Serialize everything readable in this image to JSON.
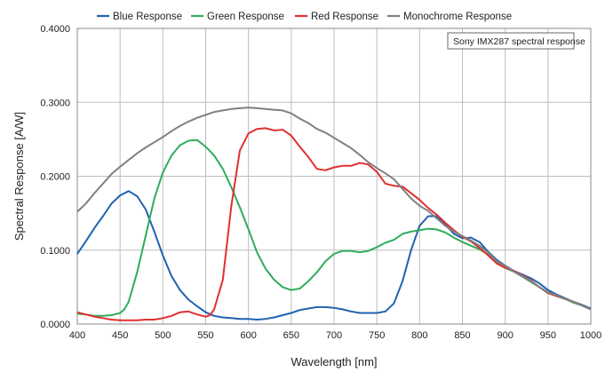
{
  "chart_data": {
    "type": "line",
    "title": "",
    "xlabel": "Wavelength [nm]",
    "ylabel": "Spectral Response [A/W]",
    "xlim": [
      400,
      1000
    ],
    "ylim": [
      0,
      0.4
    ],
    "x_ticks": [
      400,
      450,
      500,
      550,
      600,
      650,
      700,
      750,
      800,
      850,
      900,
      950,
      1000
    ],
    "y_ticks": [
      0,
      0.1,
      0.2,
      0.3,
      0.4
    ],
    "y_tick_labels": [
      "0.0000",
      "0.1000",
      "0.2000",
      "0.3000",
      "0.4000"
    ],
    "grid": true,
    "legend_position": "top",
    "annotation": "Sony IMX287 spectral response",
    "series": [
      {
        "name": "Blue Response",
        "color": "#1f63b0",
        "points": [
          [
            400,
            0.095
          ],
          [
            410,
            0.112
          ],
          [
            420,
            0.13
          ],
          [
            430,
            0.146
          ],
          [
            440,
            0.163
          ],
          [
            450,
            0.174
          ],
          [
            460,
            0.18
          ],
          [
            470,
            0.173
          ],
          [
            480,
            0.155
          ],
          [
            490,
            0.125
          ],
          [
            500,
            0.093
          ],
          [
            510,
            0.065
          ],
          [
            520,
            0.046
          ],
          [
            530,
            0.033
          ],
          [
            540,
            0.024
          ],
          [
            550,
            0.016
          ],
          [
            560,
            0.011
          ],
          [
            570,
            0.009
          ],
          [
            580,
            0.008
          ],
          [
            590,
            0.007
          ],
          [
            600,
            0.007
          ],
          [
            610,
            0.006
          ],
          [
            620,
            0.007
          ],
          [
            630,
            0.009
          ],
          [
            640,
            0.012
          ],
          [
            650,
            0.015
          ],
          [
            660,
            0.019
          ],
          [
            670,
            0.021
          ],
          [
            680,
            0.023
          ],
          [
            690,
            0.023
          ],
          [
            700,
            0.022
          ],
          [
            710,
            0.02
          ],
          [
            720,
            0.017
          ],
          [
            730,
            0.015
          ],
          [
            740,
            0.015
          ],
          [
            750,
            0.015
          ],
          [
            760,
            0.017
          ],
          [
            770,
            0.028
          ],
          [
            780,
            0.058
          ],
          [
            790,
            0.1
          ],
          [
            800,
            0.133
          ],
          [
            810,
            0.146
          ],
          [
            820,
            0.146
          ],
          [
            830,
            0.135
          ],
          [
            840,
            0.122
          ],
          [
            850,
            0.116
          ],
          [
            860,
            0.117
          ],
          [
            870,
            0.111
          ],
          [
            880,
            0.098
          ],
          [
            890,
            0.087
          ],
          [
            900,
            0.079
          ],
          [
            910,
            0.072
          ],
          [
            920,
            0.067
          ],
          [
            930,
            0.062
          ],
          [
            940,
            0.055
          ],
          [
            950,
            0.046
          ],
          [
            960,
            0.04
          ],
          [
            970,
            0.035
          ],
          [
            980,
            0.03
          ],
          [
            990,
            0.026
          ],
          [
            1000,
            0.021
          ]
        ]
      },
      {
        "name": "Green Response",
        "color": "#2eac5c",
        "points": [
          [
            400,
            0.014
          ],
          [
            410,
            0.013
          ],
          [
            420,
            0.011
          ],
          [
            430,
            0.011
          ],
          [
            440,
            0.012
          ],
          [
            450,
            0.015
          ],
          [
            455,
            0.02
          ],
          [
            460,
            0.03
          ],
          [
            470,
            0.07
          ],
          [
            480,
            0.12
          ],
          [
            490,
            0.17
          ],
          [
            500,
            0.205
          ],
          [
            510,
            0.228
          ],
          [
            520,
            0.242
          ],
          [
            530,
            0.248
          ],
          [
            540,
            0.249
          ],
          [
            550,
            0.24
          ],
          [
            560,
            0.228
          ],
          [
            570,
            0.21
          ],
          [
            580,
            0.185
          ],
          [
            590,
            0.158
          ],
          [
            600,
            0.128
          ],
          [
            610,
            0.097
          ],
          [
            620,
            0.075
          ],
          [
            630,
            0.06
          ],
          [
            640,
            0.05
          ],
          [
            650,
            0.046
          ],
          [
            660,
            0.048
          ],
          [
            670,
            0.058
          ],
          [
            680,
            0.07
          ],
          [
            690,
            0.085
          ],
          [
            700,
            0.095
          ],
          [
            710,
            0.099
          ],
          [
            720,
            0.099
          ],
          [
            730,
            0.097
          ],
          [
            740,
            0.099
          ],
          [
            750,
            0.104
          ],
          [
            760,
            0.11
          ],
          [
            770,
            0.114
          ],
          [
            780,
            0.122
          ],
          [
            790,
            0.125
          ],
          [
            800,
            0.127
          ],
          [
            810,
            0.129
          ],
          [
            820,
            0.128
          ],
          [
            830,
            0.124
          ],
          [
            840,
            0.117
          ],
          [
            850,
            0.111
          ],
          [
            860,
            0.106
          ],
          [
            870,
            0.101
          ],
          [
            880,
            0.094
          ],
          [
            890,
            0.083
          ],
          [
            900,
            0.076
          ],
          [
            910,
            0.071
          ],
          [
            920,
            0.064
          ],
          [
            930,
            0.057
          ],
          [
            940,
            0.05
          ],
          [
            950,
            0.042
          ],
          [
            960,
            0.038
          ],
          [
            970,
            0.034
          ],
          [
            980,
            0.029
          ],
          [
            990,
            0.025
          ],
          [
            1000,
            0.02
          ]
        ]
      },
      {
        "name": "Red Response",
        "color": "#e03030",
        "points": [
          [
            400,
            0.016
          ],
          [
            410,
            0.013
          ],
          [
            420,
            0.01
          ],
          [
            430,
            0.008
          ],
          [
            440,
            0.006
          ],
          [
            450,
            0.005
          ],
          [
            460,
            0.005
          ],
          [
            470,
            0.005
          ],
          [
            480,
            0.006
          ],
          [
            490,
            0.006
          ],
          [
            500,
            0.008
          ],
          [
            510,
            0.011
          ],
          [
            520,
            0.016
          ],
          [
            530,
            0.017
          ],
          [
            540,
            0.013
          ],
          [
            550,
            0.01
          ],
          [
            555,
            0.012
          ],
          [
            560,
            0.02
          ],
          [
            570,
            0.06
          ],
          [
            580,
            0.16
          ],
          [
            590,
            0.235
          ],
          [
            600,
            0.258
          ],
          [
            610,
            0.264
          ],
          [
            620,
            0.265
          ],
          [
            630,
            0.262
          ],
          [
            640,
            0.263
          ],
          [
            650,
            0.255
          ],
          [
            660,
            0.24
          ],
          [
            670,
            0.226
          ],
          [
            680,
            0.21
          ],
          [
            690,
            0.208
          ],
          [
            700,
            0.212
          ],
          [
            710,
            0.214
          ],
          [
            720,
            0.214
          ],
          [
            730,
            0.218
          ],
          [
            740,
            0.216
          ],
          [
            750,
            0.206
          ],
          [
            760,
            0.19
          ],
          [
            770,
            0.187
          ],
          [
            780,
            0.186
          ],
          [
            790,
            0.177
          ],
          [
            800,
            0.168
          ],
          [
            810,
            0.157
          ],
          [
            820,
            0.148
          ],
          [
            830,
            0.137
          ],
          [
            840,
            0.127
          ],
          [
            850,
            0.118
          ],
          [
            860,
            0.112
          ],
          [
            870,
            0.103
          ],
          [
            880,
            0.093
          ],
          [
            890,
            0.082
          ],
          [
            900,
            0.076
          ],
          [
            910,
            0.072
          ],
          [
            920,
            0.066
          ],
          [
            930,
            0.059
          ],
          [
            940,
            0.05
          ],
          [
            950,
            0.042
          ],
          [
            960,
            0.038
          ],
          [
            970,
            0.034
          ],
          [
            980,
            0.03
          ],
          [
            990,
            0.025
          ],
          [
            1000,
            0.02
          ]
        ]
      },
      {
        "name": "Monochrome Response",
        "color": "#808080",
        "points": [
          [
            400,
            0.152
          ],
          [
            410,
            0.163
          ],
          [
            420,
            0.177
          ],
          [
            430,
            0.19
          ],
          [
            440,
            0.203
          ],
          [
            450,
            0.213
          ],
          [
            460,
            0.222
          ],
          [
            470,
            0.231
          ],
          [
            480,
            0.239
          ],
          [
            490,
            0.246
          ],
          [
            500,
            0.253
          ],
          [
            510,
            0.261
          ],
          [
            520,
            0.268
          ],
          [
            530,
            0.274
          ],
          [
            540,
            0.279
          ],
          [
            550,
            0.283
          ],
          [
            560,
            0.287
          ],
          [
            570,
            0.289
          ],
          [
            580,
            0.291
          ],
          [
            590,
            0.292
          ],
          [
            600,
            0.293
          ],
          [
            610,
            0.292
          ],
          [
            620,
            0.291
          ],
          [
            630,
            0.29
          ],
          [
            640,
            0.289
          ],
          [
            650,
            0.285
          ],
          [
            660,
            0.278
          ],
          [
            670,
            0.272
          ],
          [
            680,
            0.264
          ],
          [
            690,
            0.259
          ],
          [
            700,
            0.252
          ],
          [
            710,
            0.245
          ],
          [
            720,
            0.238
          ],
          [
            730,
            0.229
          ],
          [
            740,
            0.219
          ],
          [
            750,
            0.211
          ],
          [
            760,
            0.204
          ],
          [
            770,
            0.196
          ],
          [
            780,
            0.183
          ],
          [
            790,
            0.17
          ],
          [
            800,
            0.16
          ],
          [
            810,
            0.153
          ],
          [
            820,
            0.143
          ],
          [
            830,
            0.133
          ],
          [
            840,
            0.125
          ],
          [
            850,
            0.119
          ],
          [
            860,
            0.113
          ],
          [
            870,
            0.106
          ],
          [
            880,
            0.097
          ],
          [
            890,
            0.085
          ],
          [
            900,
            0.079
          ],
          [
            910,
            0.071
          ],
          [
            920,
            0.065
          ],
          [
            930,
            0.058
          ],
          [
            940,
            0.05
          ],
          [
            950,
            0.043
          ],
          [
            960,
            0.039
          ],
          [
            970,
            0.034
          ],
          [
            980,
            0.03
          ],
          [
            990,
            0.025
          ],
          [
            1000,
            0.02
          ]
        ]
      }
    ]
  }
}
